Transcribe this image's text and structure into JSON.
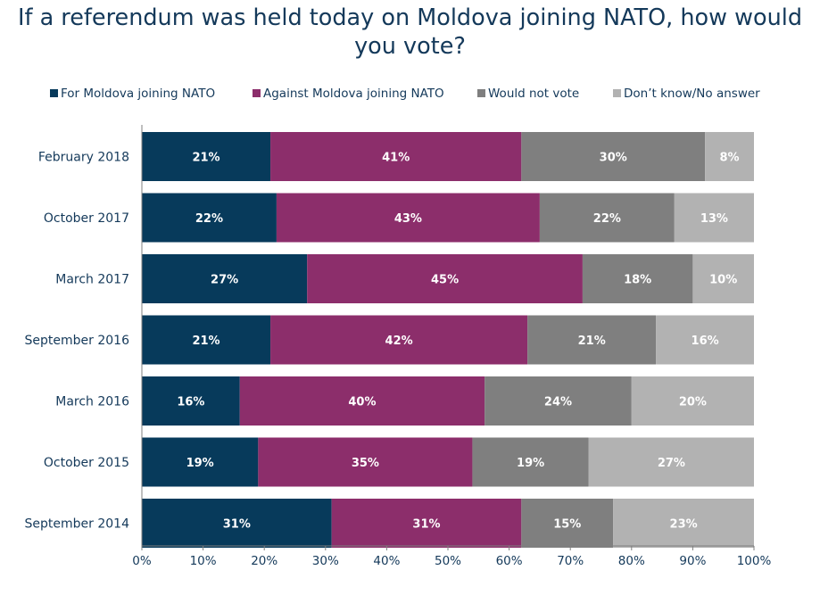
{
  "chart_data": {
    "type": "bar",
    "orientation": "horizontal",
    "stacked": true,
    "title": "If a referendum was held today on Moldova joining NATO, how would you vote?",
    "categories": [
      "February 2018",
      "October 2017",
      "March 2017",
      "September 2016",
      "March 2016",
      "October 2015",
      "September 2014"
    ],
    "series": [
      {
        "name": "For Moldova joining NATO",
        "color": "#073a5b",
        "values": [
          21,
          22,
          27,
          21,
          16,
          19,
          31
        ]
      },
      {
        "name": "Against Moldova joining NATO",
        "color": "#8c2e6b",
        "values": [
          41,
          43,
          45,
          42,
          40,
          35,
          31
        ]
      },
      {
        "name": "Would not vote",
        "color": "#7f7f7f",
        "values": [
          30,
          22,
          18,
          21,
          24,
          19,
          15
        ]
      },
      {
        "name": "Don’t know/No answer",
        "color": "#b2b2b2",
        "values": [
          8,
          13,
          10,
          16,
          20,
          27,
          23
        ]
      }
    ],
    "xlim": [
      0,
      100
    ],
    "xticks": [
      "0%",
      "10%",
      "20%",
      "30%",
      "40%",
      "50%",
      "60%",
      "70%",
      "80%",
      "90%",
      "100%"
    ],
    "value_suffix": "%",
    "legend_position": "top",
    "grid": false
  }
}
